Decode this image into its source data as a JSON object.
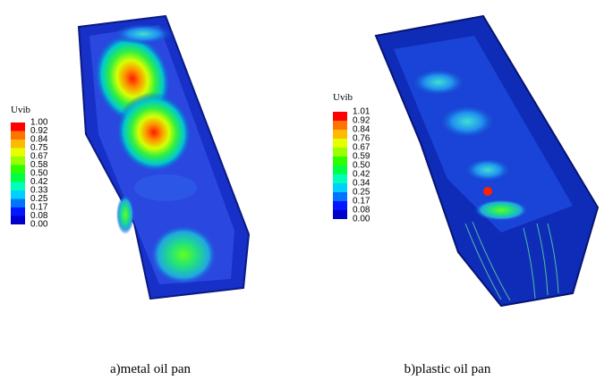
{
  "panels": [
    {
      "legend": {
        "title": "Uvib",
        "labels": [
          "1.00",
          "0.92",
          "0.84",
          "0.75",
          "0.67",
          "0.58",
          "0.50",
          "0.42",
          "0.33",
          "0.25",
          "0.17",
          "0.08",
          "0.00"
        ]
      },
      "caption": "a)metal oil pan"
    },
    {
      "legend": {
        "title": "Uvib",
        "labels": [
          "1.01",
          "0.92",
          "0.84",
          "0.76",
          "0.67",
          "0.59",
          "0.50",
          "0.42",
          "0.34",
          "0.25",
          "0.17",
          "0.08",
          "0.00"
        ]
      },
      "caption": "b)plastic oil pan"
    }
  ]
}
